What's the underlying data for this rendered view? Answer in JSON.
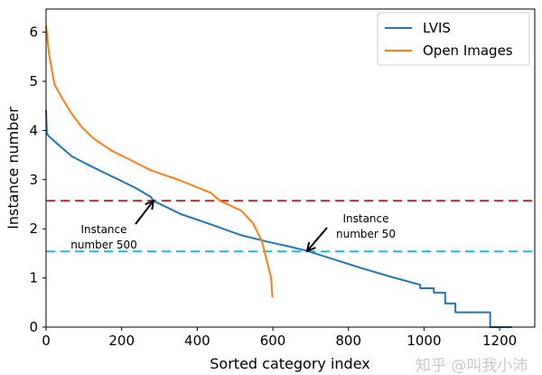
{
  "chart_data": {
    "type": "line",
    "title": "",
    "xlabel": "Sorted category index",
    "ylabel": "Instance number",
    "xlim": [
      0,
      1293
    ],
    "ylim": [
      0,
      6.47
    ],
    "xticks": [
      0,
      200,
      400,
      600,
      800,
      1000,
      1200
    ],
    "yticks": [
      0,
      1,
      2,
      3,
      4,
      5,
      6
    ],
    "grid": false,
    "legend_position": "top-right",
    "series": [
      {
        "name": "LVIS",
        "color": "#1f77b4",
        "step": false,
        "points": [
          [
            0,
            4.42
          ],
          [
            2,
            3.95
          ],
          [
            5,
            3.9
          ],
          [
            37,
            3.68
          ],
          [
            69,
            3.47
          ],
          [
            117,
            3.28
          ],
          [
            165,
            3.1
          ],
          [
            197,
            2.98
          ],
          [
            237,
            2.83
          ],
          [
            277,
            2.65
          ],
          [
            284,
            2.57
          ],
          [
            356,
            2.3
          ],
          [
            436,
            2.09
          ],
          [
            516,
            1.87
          ],
          [
            595,
            1.72
          ],
          [
            643,
            1.64
          ],
          [
            691,
            1.55
          ],
          [
            834,
            1.2
          ],
          [
            914,
            1.02
          ],
          [
            990,
            0.86
          ],
          [
            990,
            0.79
          ],
          [
            1026,
            0.79
          ],
          [
            1026,
            0.7
          ],
          [
            1056,
            0.7
          ],
          [
            1056,
            0.48
          ],
          [
            1083,
            0.48
          ],
          [
            1083,
            0.3
          ],
          [
            1128,
            0.3
          ],
          [
            1128,
            0.3
          ],
          [
            1175,
            0.3
          ],
          [
            1175,
            0
          ],
          [
            1233,
            0
          ]
        ]
      },
      {
        "name": "Open Images",
        "color": "#ff7f0e",
        "points": [
          [
            0,
            6.13
          ],
          [
            8,
            5.55
          ],
          [
            22,
            4.94
          ],
          [
            49,
            4.57
          ],
          [
            69,
            4.33
          ],
          [
            93,
            4.08
          ],
          [
            125,
            3.84
          ],
          [
            173,
            3.59
          ],
          [
            221,
            3.41
          ],
          [
            277,
            3.19
          ],
          [
            356,
            2.98
          ],
          [
            436,
            2.73
          ],
          [
            460,
            2.57
          ],
          [
            516,
            2.37
          ],
          [
            547,
            2.12
          ],
          [
            571,
            1.75
          ],
          [
            583,
            1.38
          ],
          [
            595,
            1.02
          ],
          [
            599,
            0.6
          ]
        ]
      }
    ],
    "reference_lines": [
      {
        "y": 2.57,
        "color": "#d62728",
        "style": "dashed"
      },
      {
        "y": 1.54,
        "color": "#17becf",
        "style": "dashed"
      }
    ],
    "annotations": [
      {
        "line1": "Instance",
        "line2": "number 500",
        "arrow_to": [
          284,
          2.57
        ]
      },
      {
        "line1": "Instance",
        "line2": "number 50",
        "arrow_to": [
          691,
          1.55
        ]
      }
    ]
  },
  "watermark": "知乎 @叫我小沛"
}
